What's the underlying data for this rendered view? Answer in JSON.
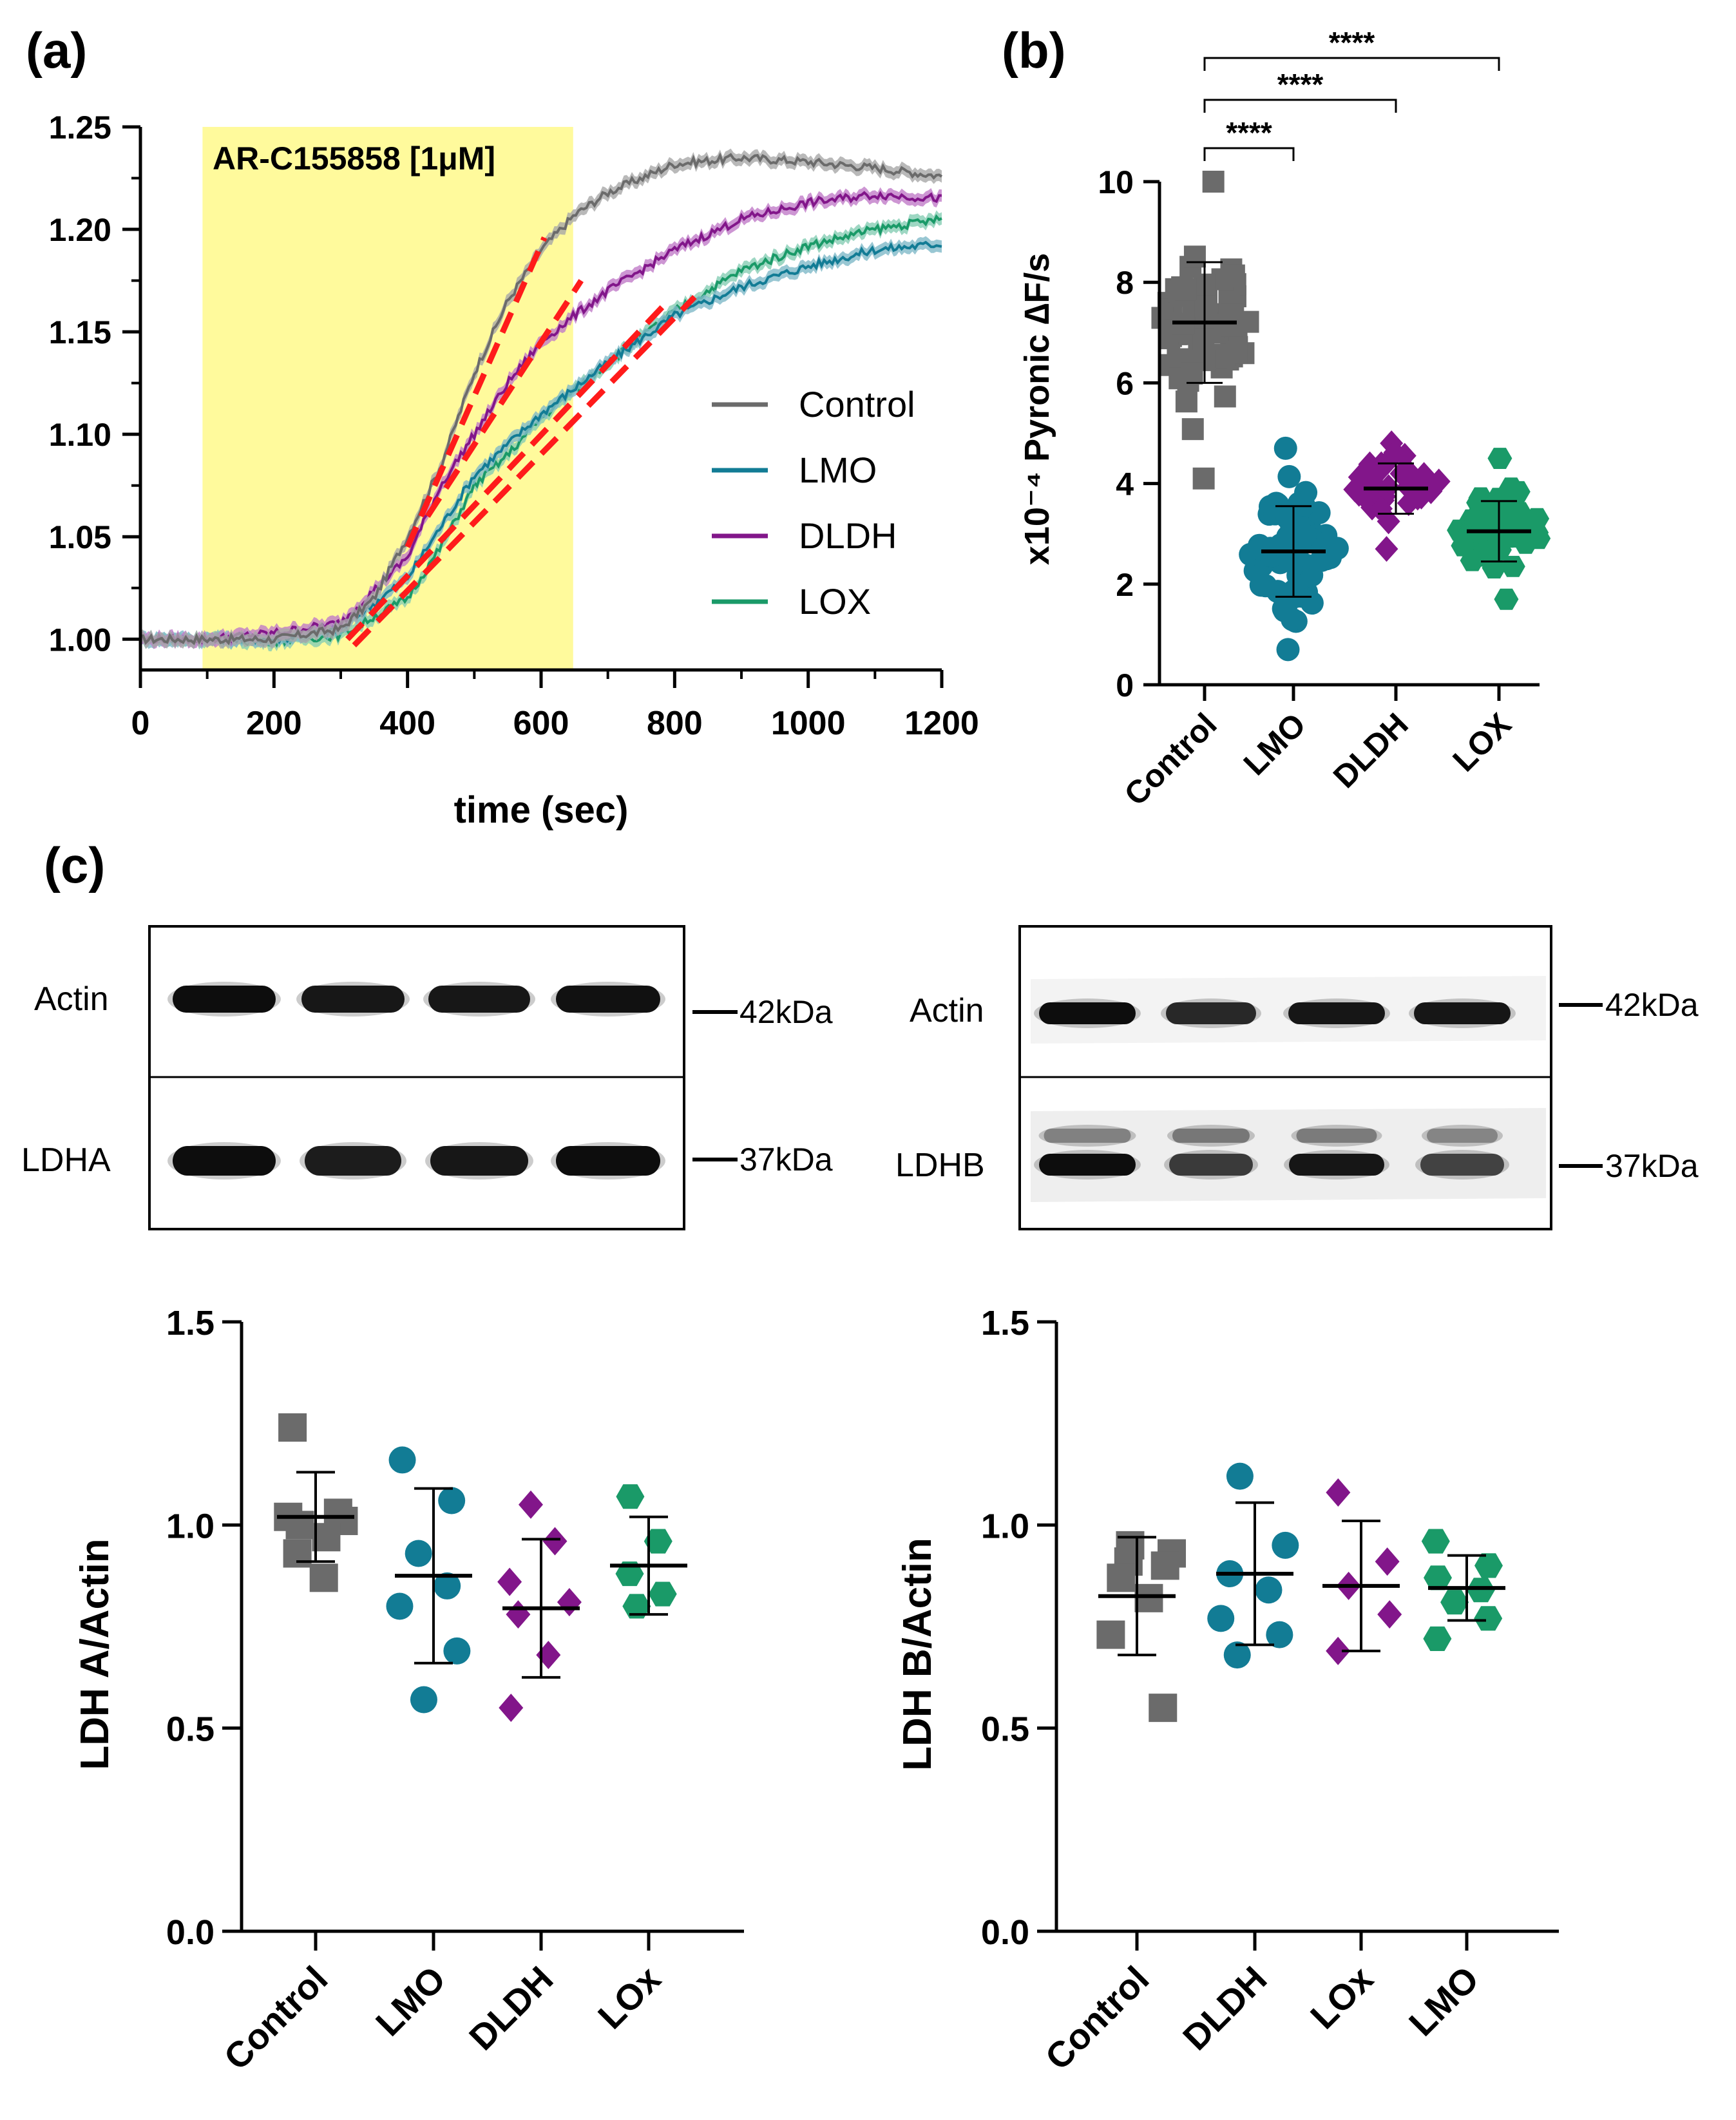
{
  "colors": {
    "control": "#6b6b6b",
    "control_light": "#a8a8a8",
    "lmo": "#127c95",
    "lmo_light": "#7fb9c8",
    "dldh": "#82168a",
    "dldh_light": "#c07cc8",
    "lox": "#1a9a68",
    "lox_light": "#86cdb4",
    "fit_line": "#ff1b1b",
    "highlight": "#fffa9c"
  },
  "panels": {
    "a": {
      "label": "(a)",
      "annotation": "AR-C155858 [1μM]",
      "highlight_range": [
        93,
        648
      ],
      "legend": [
        "Control",
        "LMO",
        "DLDH",
        "LOX"
      ],
      "chart_data": {
        "type": "line",
        "title": "",
        "xlabel": "time (sec)",
        "ylabel": "",
        "xlim": [
          0,
          1200
        ],
        "ylim": [
          0.985,
          1.25
        ],
        "xticks": [
          "0",
          "200",
          "400",
          "600",
          "800",
          "1000",
          "1200"
        ],
        "yticks": [
          "1.00",
          "1.05",
          "1.10",
          "1.15",
          "1.20",
          "1.25"
        ],
        "series": [
          {
            "name": "Control",
            "color_key": "control",
            "x": [
              0,
              100,
              200,
              300,
              350,
              400,
              450,
              500,
              550,
              600,
              650,
              700,
              800,
              900,
              1000,
              1100,
              1200
            ],
            "y": [
              1.0,
              1.0,
              1.0,
              1.005,
              1.02,
              1.05,
              1.085,
              1.13,
              1.165,
              1.19,
              1.207,
              1.218,
              1.232,
              1.235,
              1.233,
              1.23,
              1.226
            ]
          },
          {
            "name": "LMO",
            "color_key": "lmo",
            "x": [
              0,
              100,
              200,
              300,
              400,
              450,
              500,
              550,
              600,
              700,
              800,
              900,
              1000,
              1100,
              1200
            ],
            "y": [
              1.0,
              1.0,
              1.0,
              1.005,
              1.03,
              1.055,
              1.08,
              1.095,
              1.11,
              1.135,
              1.158,
              1.172,
              1.182,
              1.19,
              1.193
            ]
          },
          {
            "name": "DLDH",
            "color_key": "dldh",
            "x": [
              0,
              100,
              200,
              300,
              400,
              450,
              500,
              550,
              600,
              650,
              700,
              800,
              900,
              1000,
              1100,
              1200
            ],
            "y": [
              1.0,
              1.0,
              1.003,
              1.008,
              1.04,
              1.075,
              1.1,
              1.125,
              1.145,
              1.158,
              1.17,
              1.19,
              1.205,
              1.213,
              1.217,
              1.215
            ]
          },
          {
            "name": "LOX",
            "color_key": "lox",
            "x": [
              0,
              100,
              200,
              300,
              400,
              450,
              500,
              550,
              600,
              700,
              800,
              900,
              1000,
              1100,
              1200
            ],
            "y": [
              1.0,
              1.0,
              0.999,
              1.002,
              1.02,
              1.045,
              1.075,
              1.09,
              1.108,
              1.135,
              1.16,
              1.18,
              1.192,
              1.2,
              1.205
            ]
          }
        ],
        "fit_lines": [
          {
            "x": [
              400,
              605
            ],
            "y": [
              1.045,
              1.196
            ]
          },
          {
            "x": [
              430,
              660
            ],
            "y": [
              1.06,
              1.175
            ]
          },
          {
            "x": [
              310,
              790
            ],
            "y": [
              1.0,
              1.165
            ]
          },
          {
            "x": [
              320,
              830
            ],
            "y": [
              0.997,
              1.167
            ]
          }
        ]
      }
    },
    "b": {
      "label": "(b)",
      "significance": [
        "****",
        "****",
        "****"
      ],
      "chart_data": {
        "type": "scatter",
        "title": "",
        "xlabel": "",
        "ylabel": "x10⁻⁴ Pyronic ∆F/s",
        "ylim": [
          0,
          10
        ],
        "yticks": [
          "0",
          "2",
          "4",
          "6",
          "8",
          "10"
        ],
        "categories": [
          "Control",
          "LMO",
          "DLDH",
          "LOX"
        ],
        "means": [
          7.2,
          2.65,
          3.9,
          3.05
        ],
        "sd": [
          1.2,
          0.9,
          0.5,
          0.6
        ],
        "ranges": [
          [
            4.1,
            10.0
          ],
          [
            0.7,
            4.7
          ],
          [
            2.7,
            4.8
          ],
          [
            1.7,
            4.5
          ]
        ],
        "n_points": [
          70,
          65,
          45,
          60
        ]
      }
    },
    "c": {
      "label": "(c)",
      "blot_left": {
        "rows": [
          "Actin",
          "LDHA"
        ],
        "markers": [
          "42kDa",
          "37kDa"
        ]
      },
      "blot_right": {
        "rows": [
          "Actin",
          "LDHB"
        ],
        "markers": [
          "42kDa",
          "37kDa"
        ]
      },
      "plot_left": {
        "chart_data": {
          "type": "scatter",
          "title": "",
          "xlabel": "",
          "ylabel": "LDH A/Actin",
          "ylim": [
            0,
            1.5
          ],
          "yticks": [
            "0.0",
            "0.5",
            "1.0",
            "1.5"
          ],
          "categories": [
            "Control",
            "LMO",
            "DLDH",
            "LOx"
          ],
          "color_keys": [
            "control",
            "lmo",
            "dldh",
            "lox"
          ],
          "shapes": [
            "square",
            "circle",
            "diamond",
            "hexagon"
          ],
          "means": [
            1.02,
            0.875,
            0.795,
            0.9
          ],
          "sd": [
            0.11,
            0.215,
            0.17,
            0.12
          ],
          "points": [
            [
              1.24,
              1.03,
              1.02,
              1.01,
              1.0,
              0.97,
              0.93,
              0.87
            ],
            [
              1.16,
              1.06,
              0.93,
              0.85,
              0.8,
              0.69,
              0.57
            ],
            [
              1.05,
              0.96,
              0.86,
              0.81,
              0.78,
              0.68,
              0.55
            ],
            [
              1.07,
              0.96,
              0.88,
              0.83,
              0.8
            ]
          ]
        }
      },
      "plot_right": {
        "chart_data": {
          "type": "scatter",
          "title": "",
          "xlabel": "",
          "ylabel": "LDH B/Actin",
          "ylim": [
            0,
            1.5
          ],
          "yticks": [
            "0.0",
            "0.5",
            "1.0",
            "1.5"
          ],
          "categories": [
            "Control",
            "DLDH",
            "LOx",
            "LMO"
          ],
          "color_keys": [
            "control",
            "lmo",
            "dldh",
            "lox"
          ],
          "shapes": [
            "square",
            "circle",
            "diamond",
            "hexagon"
          ],
          "means": [
            0.825,
            0.88,
            0.85,
            0.845
          ],
          "sd": [
            0.145,
            0.175,
            0.16,
            0.08
          ],
          "points": [
            [
              0.95,
              0.93,
              0.91,
              0.9,
              0.87,
              0.82,
              0.73,
              0.55
            ],
            [
              1.12,
              0.95,
              0.88,
              0.84,
              0.77,
              0.73,
              0.68
            ],
            [
              1.08,
              0.91,
              0.85,
              0.78,
              0.69
            ],
            [
              0.96,
              0.9,
              0.87,
              0.84,
              0.81,
              0.77,
              0.72
            ]
          ]
        }
      }
    }
  }
}
